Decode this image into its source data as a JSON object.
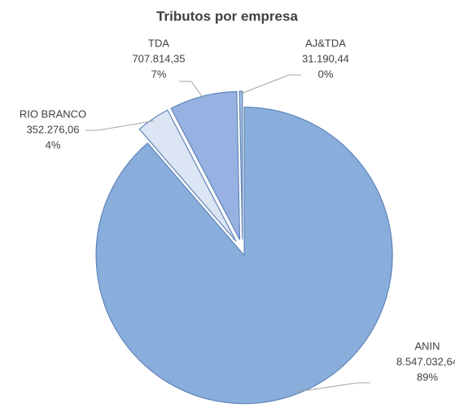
{
  "chart_data": {
    "type": "pie",
    "title": "Tributos por empresa",
    "categories": [
      "ANIN",
      "RIO BRANCO",
      "TDA",
      "AJ&TDA"
    ],
    "values": [
      8547032.64,
      352276.06,
      707814.35,
      31190.44
    ],
    "value_labels": [
      "8.547.032,64",
      "352.276,06",
      "707.814,35",
      "31.190,44"
    ],
    "percent_labels": [
      "89%",
      "4%",
      "7%",
      "0%"
    ],
    "colors": [
      "#8aaedc",
      "#dce5f4",
      "#97b1e2",
      "#a9c0e8"
    ]
  }
}
